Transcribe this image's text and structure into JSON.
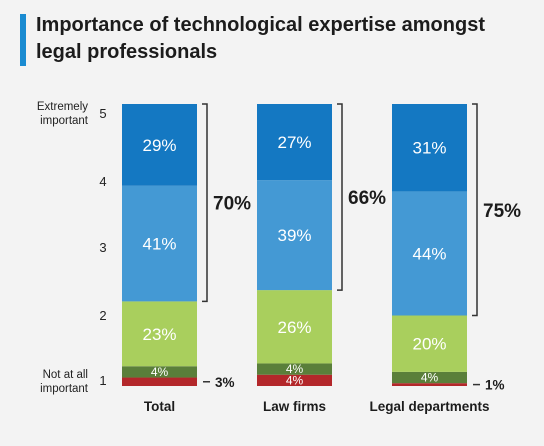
{
  "title": "Importance of technological expertise amongst legal professionals",
  "colors": {
    "accent": "#1a8bd1",
    "level5": "#1478c2",
    "level4": "#4499d4",
    "level3": "#a9cf5d",
    "level2": "#5a7f3a",
    "level1": "#b3272a",
    "value_label": "#ffffff",
    "bracket": "#333333"
  },
  "chart_data": {
    "type": "bar",
    "stacked": true,
    "normalized": true,
    "categories": [
      "Total",
      "Law firms",
      "Legal departments"
    ],
    "y_ticks": [
      "1",
      "2",
      "3",
      "4",
      "5"
    ],
    "y_end_labels": {
      "top": "Extremely important",
      "bottom": "Not at all important"
    },
    "series": [
      {
        "level": "1",
        "values": [
          3,
          4,
          1
        ],
        "labels": [
          "",
          "4%",
          ""
        ],
        "color": "#b3272a"
      },
      {
        "level": "2",
        "values": [
          4,
          4,
          4
        ],
        "labels": [
          "4%",
          "4%",
          "4%"
        ],
        "color": "#5a7f3a"
      },
      {
        "level": "3",
        "values": [
          23,
          26,
          20
        ],
        "labels": [
          "23%",
          "26%",
          "20%"
        ],
        "color": "#a9cf5d"
      },
      {
        "level": "4",
        "values": [
          41,
          39,
          44
        ],
        "labels": [
          "41%",
          "39%",
          "44%"
        ],
        "color": "#4499d4"
      },
      {
        "level": "5",
        "values": [
          29,
          27,
          31
        ],
        "labels": [
          "29%",
          "27%",
          "31%"
        ],
        "color": "#1478c2"
      }
    ],
    "top_totals": [
      "70%",
      "66%",
      "75%"
    ],
    "side_notes": [
      "3%",
      "",
      "1%"
    ],
    "ylim": [
      0,
      100
    ],
    "grid": false,
    "legend": "none"
  }
}
